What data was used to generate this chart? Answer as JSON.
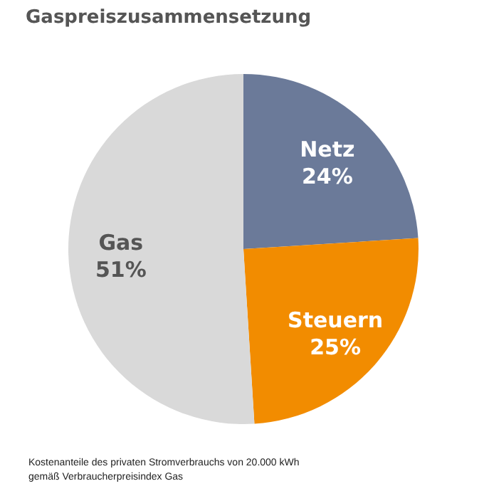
{
  "chart_data": {
    "type": "pie",
    "title": "Gaspreiszusammensetzung",
    "categories": [
      "Netz",
      "Steuern",
      "Gas"
    ],
    "values": [
      24,
      25,
      51
    ],
    "colors": [
      "#6b7a99",
      "#f28c00",
      "#d9d9d9"
    ],
    "value_labels": [
      "24%",
      "25%",
      "51%"
    ],
    "annotations": [
      "Kostenanteile des privaten Stromverbrauchs von 20.000 kWh",
      "gemäß Verbraucherpreisindex Gas"
    ]
  }
}
